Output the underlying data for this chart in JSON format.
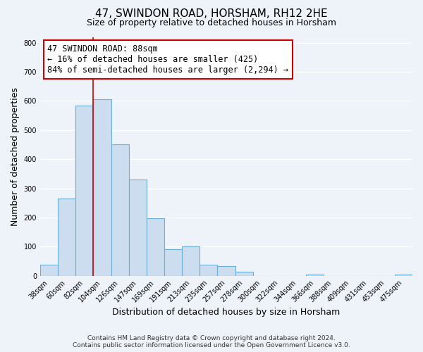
{
  "title": "47, SWINDON ROAD, HORSHAM, RH12 2HE",
  "subtitle": "Size of property relative to detached houses in Horsham",
  "xlabel": "Distribution of detached houses by size in Horsham",
  "ylabel": "Number of detached properties",
  "bar_labels": [
    "38sqm",
    "60sqm",
    "82sqm",
    "104sqm",
    "126sqm",
    "147sqm",
    "169sqm",
    "191sqm",
    "213sqm",
    "235sqm",
    "257sqm",
    "278sqm",
    "300sqm",
    "322sqm",
    "344sqm",
    "366sqm",
    "388sqm",
    "409sqm",
    "431sqm",
    "453sqm",
    "475sqm"
  ],
  "bar_heights": [
    38,
    265,
    585,
    605,
    452,
    330,
    197,
    90,
    100,
    38,
    32,
    14,
    0,
    0,
    0,
    5,
    0,
    0,
    0,
    0,
    5
  ],
  "bar_color": "#ccddf0",
  "bar_edge_color": "#6baed6",
  "vline_color": "#cc0000",
  "annotation_text": "47 SWINDON ROAD: 88sqm\n← 16% of detached houses are smaller (425)\n84% of semi-detached houses are larger (2,294) →",
  "annotation_box_color": "#ffffff",
  "annotation_box_edge_color": "#cc0000",
  "ylim": [
    0,
    820
  ],
  "yticks": [
    0,
    100,
    200,
    300,
    400,
    500,
    600,
    700,
    800
  ],
  "footer_line1": "Contains HM Land Registry data © Crown copyright and database right 2024.",
  "footer_line2": "Contains public sector information licensed under the Open Government Licence v3.0.",
  "background_color": "#eef2f9",
  "grid_color": "#ffffff",
  "title_fontsize": 11,
  "subtitle_fontsize": 9,
  "axis_label_fontsize": 9,
  "tick_fontsize": 7,
  "annotation_fontsize": 8.5,
  "footer_fontsize": 6.5
}
